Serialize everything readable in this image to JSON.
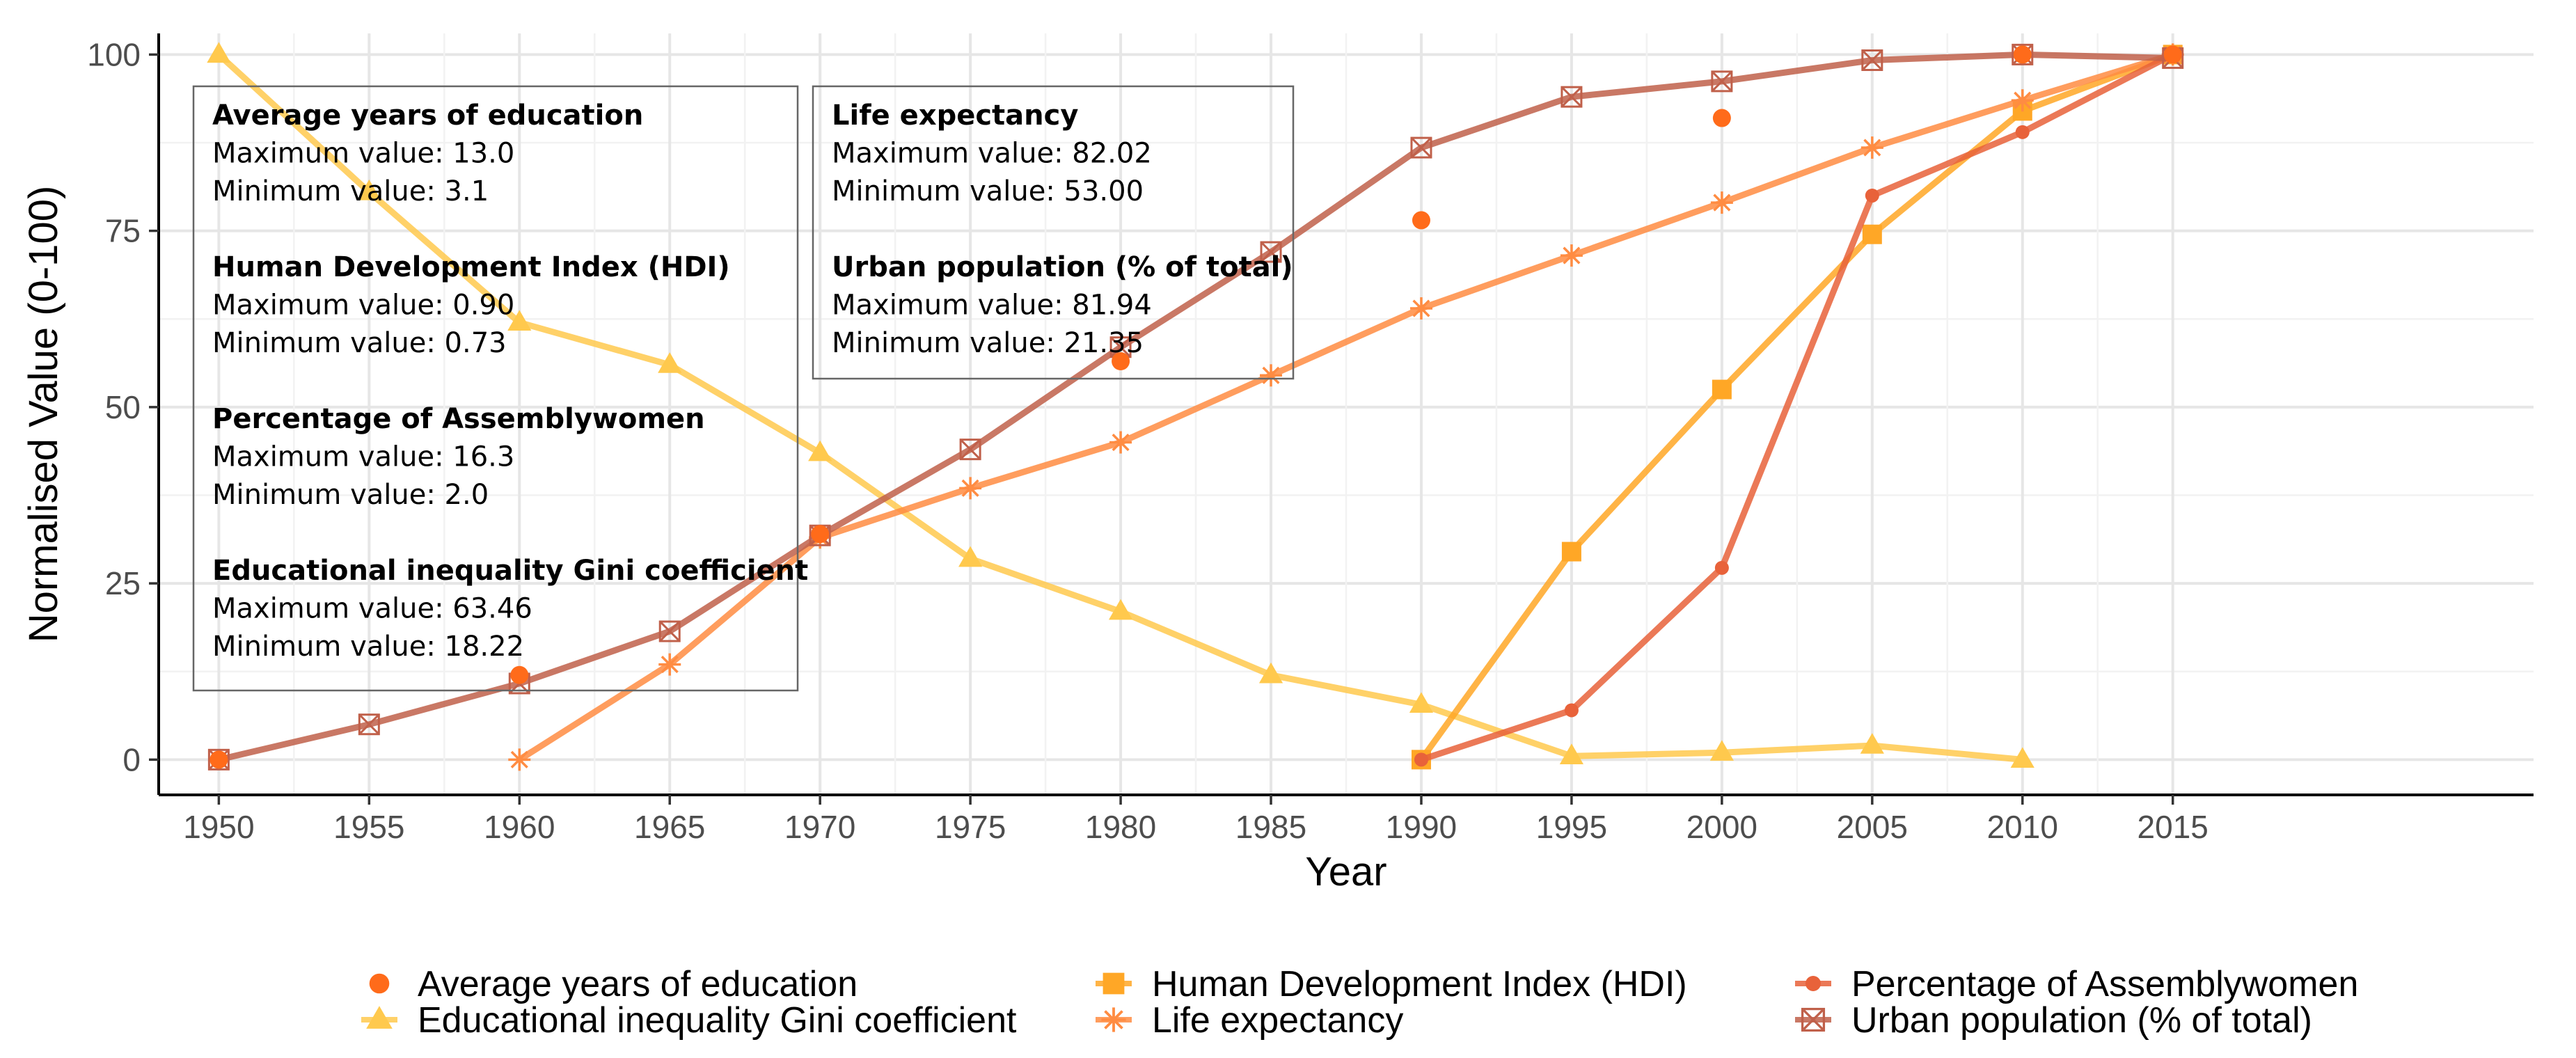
{
  "chart_data": {
    "type": "line",
    "title": "",
    "xlabel": "Year",
    "ylabel": "Normalised Value (0-100)",
    "xlim": [
      1948,
      2027
    ],
    "ylim": [
      -5,
      103
    ],
    "x_ticks": [
      1950,
      1955,
      1960,
      1965,
      1970,
      1975,
      1980,
      1985,
      1990,
      1995,
      2000,
      2005,
      2010,
      2015
    ],
    "y_ticks": [
      0,
      25,
      50,
      75,
      100
    ],
    "legend_position": "bottom",
    "series": [
      {
        "name": "Average years of education",
        "color": "#ff6b1a",
        "marker": "circle",
        "line": false,
        "points": [
          [
            1950,
            0
          ],
          [
            1960,
            12
          ],
          [
            1970,
            32
          ],
          [
            1980,
            56.5
          ],
          [
            1990,
            76.5
          ],
          [
            2000,
            91
          ],
          [
            2010,
            100
          ],
          [
            2015,
            100
          ]
        ]
      },
      {
        "name": "Educational inequality Gini coefficient",
        "color": "#ffc94d",
        "marker": "triangle",
        "line": true,
        "points": [
          [
            1950,
            100
          ],
          [
            1955,
            80.5
          ],
          [
            1960,
            62
          ],
          [
            1965,
            56
          ],
          [
            1970,
            43.5
          ],
          [
            1975,
            28.5
          ],
          [
            1980,
            21
          ],
          [
            1985,
            12
          ],
          [
            1990,
            7.8
          ],
          [
            1995,
            0.5
          ],
          [
            2000,
            1
          ],
          [
            2005,
            2
          ],
          [
            2010,
            0
          ]
        ]
      },
      {
        "name": "Human Development Index (HDI)",
        "color": "#ffa726",
        "marker": "square",
        "line": true,
        "points": [
          [
            1990,
            0
          ],
          [
            1995,
            29.5
          ],
          [
            2000,
            52.5
          ],
          [
            2005,
            74.5
          ],
          [
            2010,
            92
          ],
          [
            2015,
            100
          ]
        ]
      },
      {
        "name": "Life expectancy",
        "color": "#ff8c42",
        "marker": "asterisk",
        "line": true,
        "points": [
          [
            1960,
            0
          ],
          [
            1965,
            13.5
          ],
          [
            1970,
            31.5
          ],
          [
            1975,
            38.5
          ],
          [
            1980,
            45
          ],
          [
            1985,
            54.5
          ],
          [
            1990,
            64
          ],
          [
            1995,
            71.5
          ],
          [
            2000,
            79
          ],
          [
            2005,
            86.8
          ],
          [
            2010,
            93.5
          ],
          [
            2015,
            100
          ]
        ]
      },
      {
        "name": "Percentage of Assemblywomen",
        "color": "#e8623a",
        "marker": "dot",
        "line": true,
        "points": [
          [
            1990,
            0
          ],
          [
            1995,
            7
          ],
          [
            2000,
            27.2
          ],
          [
            2005,
            80
          ],
          [
            2010,
            89
          ],
          [
            2015,
            100
          ]
        ]
      },
      {
        "name": "Urban population (% of total)",
        "color": "#c0604a",
        "marker": "boxx",
        "line": true,
        "points": [
          [
            1950,
            0
          ],
          [
            1955,
            5
          ],
          [
            1960,
            10.8
          ],
          [
            1965,
            18.2
          ],
          [
            1970,
            31.8
          ],
          [
            1975,
            44
          ],
          [
            1980,
            58.5
          ],
          [
            1985,
            72
          ],
          [
            1990,
            86.8
          ],
          [
            1995,
            94
          ],
          [
            2000,
            96.2
          ],
          [
            2005,
            99.2
          ],
          [
            2010,
            100
          ],
          [
            2015,
            99.5
          ]
        ]
      }
    ],
    "annotations": {
      "box_left": [
        {
          "heading": "Average years of education",
          "lines": [
            "Maximum value: 13.0",
            "Minimum value: 3.1"
          ]
        },
        {
          "heading": "Human Development Index (HDI)",
          "lines": [
            "Maximum value: 0.90",
            "Minimum value: 0.73"
          ]
        },
        {
          "heading": "Percentage of Assemblywomen",
          "lines": [
            "Maximum value: 16.3",
            "Minimum value: 2.0"
          ]
        },
        {
          "heading": "Educational inequality Gini coefficient",
          "lines": [
            "Maximum value: 63.46",
            "Minimum value: 18.22"
          ]
        }
      ],
      "box_right": [
        {
          "heading": "Life expectancy",
          "lines": [
            "Maximum value: 82.02",
            "Minimum value: 53.00"
          ]
        },
        {
          "heading": "Urban population (% of total)",
          "lines": [
            "Maximum value: 81.94",
            "Minimum value: 21.35"
          ]
        }
      ]
    },
    "legend_order": [
      0,
      2,
      4,
      1,
      3,
      5
    ]
  }
}
